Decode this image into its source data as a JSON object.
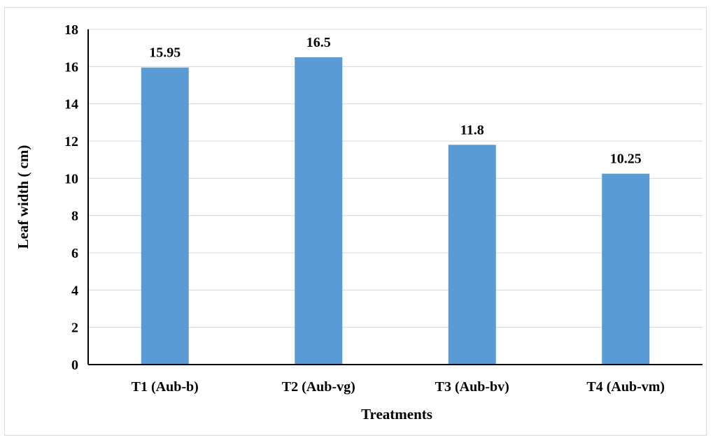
{
  "chart_data": {
    "type": "bar",
    "title": "",
    "xlabel": "Treatments",
    "ylabel": "Leaf width ( cm)",
    "categories": [
      "T1 (Aub-b)",
      "T2 (Aub-vg)",
      "T3 (Aub-bv)",
      "T4 (Aub-vm)"
    ],
    "values": [
      15.95,
      16.5,
      11.8,
      10.25
    ],
    "data_labels": [
      "15.95",
      "16.5",
      "11.8",
      "10.25"
    ],
    "ylim": [
      0,
      18
    ],
    "yticks": [
      0,
      2,
      4,
      6,
      8,
      10,
      12,
      14,
      16,
      18
    ],
    "grid": "horizontal",
    "legend": "none",
    "bar_color": "#5b9bd5",
    "grid_color": "#d9d9d9"
  }
}
